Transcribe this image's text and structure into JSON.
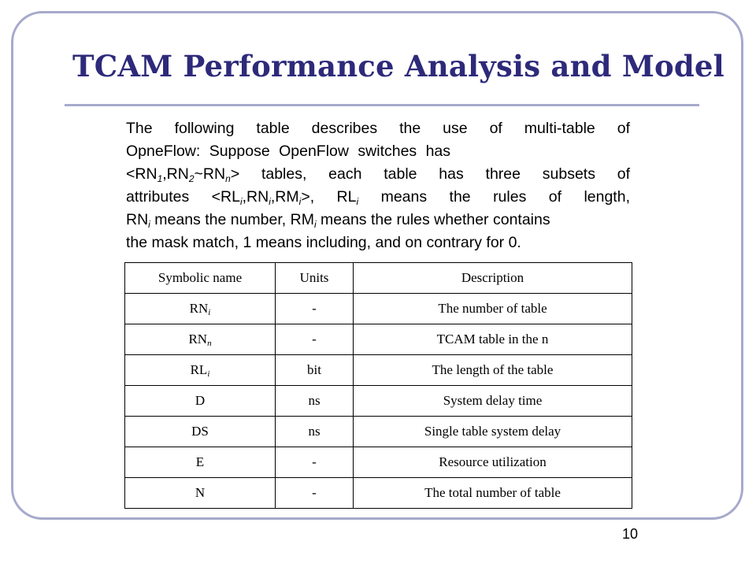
{
  "slide": {
    "title": "TCAM Performance Analysis and Model",
    "page_number": "10"
  },
  "body": {
    "line1": "The following table describes the use of multi-table of",
    "line2": "OpneFlow: Suppose OpenFlow switches has",
    "line3": {
      "p1": "<RN",
      "s1": "1",
      "p2": ",RN",
      "s2": "2",
      "p3": "~RN",
      "s3": "n",
      "p4": "> tables, each table has three subsets of"
    },
    "line4": {
      "p1": "attributes <RL",
      "s1": "i",
      "p2": ",RN",
      "s2": "i",
      "p3": ",RM",
      "s3": "i",
      "p4": ">, RL",
      "s4": "i",
      "p5": " means  the rules of length,"
    },
    "line5": {
      "p1": "RN",
      "s1": "i",
      "p2": " means the number, RM",
      "s2": "i",
      "p3": " means the rules whether contains"
    },
    "line6": "the mask match, 1 means including, and on contrary for 0."
  },
  "table": {
    "headers": [
      "Symbolic name",
      "Units",
      "Description"
    ],
    "rows": [
      {
        "sym": "RN",
        "sub": "i",
        "units": "-",
        "desc": "The number of table"
      },
      {
        "sym": "RN",
        "sub": "n",
        "units": "-",
        "desc": "TCAM table in the n"
      },
      {
        "sym": "RL",
        "sub": "i",
        "units": "bit",
        "desc": "The length of the table"
      },
      {
        "sym": "D",
        "sub": "",
        "units": "ns",
        "desc": "System delay time"
      },
      {
        "sym": "DS",
        "sub": "",
        "units": "ns",
        "desc": "Single table system delay"
      },
      {
        "sym": "E",
        "sub": "",
        "units": "-",
        "desc": "Resource utilization"
      },
      {
        "sym": "N",
        "sub": "",
        "units": "-",
        "desc": "The total number of table"
      }
    ]
  }
}
